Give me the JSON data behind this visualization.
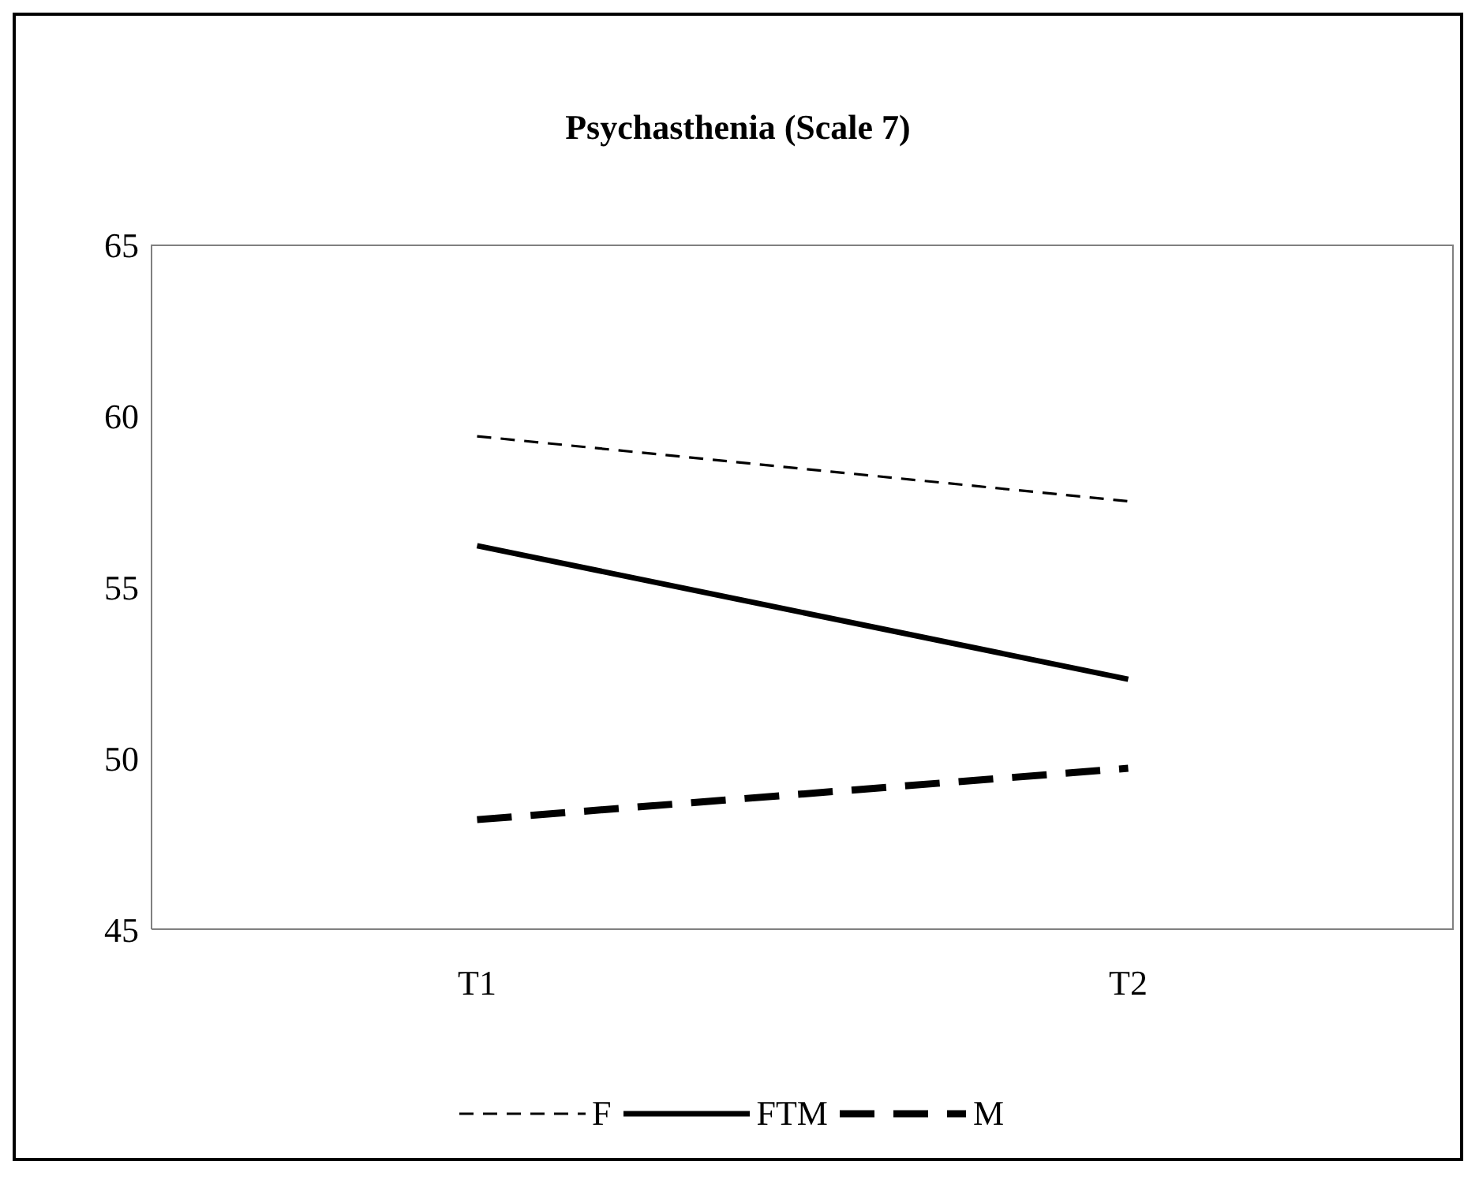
{
  "chart_data": {
    "type": "line",
    "title": "Psychasthenia (Scale 7)",
    "categories": [
      "T1",
      "T2"
    ],
    "series": [
      {
        "name": "F",
        "color": "#000000",
        "values": [
          59.4,
          57.5
        ],
        "line_style": "dashed"
      },
      {
        "name": "FTM",
        "color": "#000000",
        "values": [
          56.2,
          52.3
        ],
        "line_style": "solid"
      },
      {
        "name": "M",
        "color": "#000000",
        "values": [
          48.2,
          49.7
        ],
        "line_style": "dashed"
      }
    ],
    "ylim": [
      45,
      65
    ],
    "yticks": [
      45,
      50,
      55,
      60,
      65
    ],
    "legend": "bottom",
    "marker": "none"
  }
}
